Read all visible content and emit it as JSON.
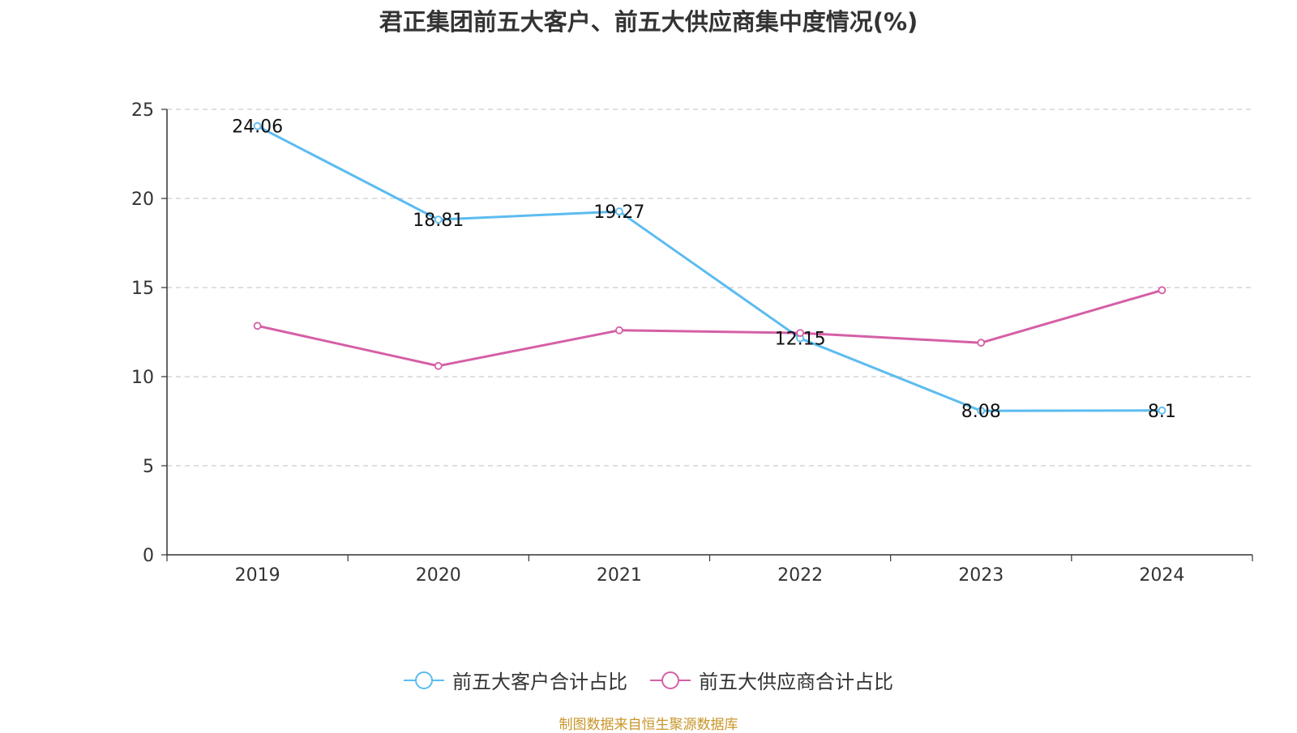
{
  "title": "君正集团前五大客户、前五大供应商集中度情况(%)",
  "source_note": "制图数据来自恒生聚源数据库",
  "colors": {
    "customers": "#5bbcf0",
    "suppliers": "#d55fa6",
    "axis": "#333333",
    "grid": "#cccccc",
    "source": "#c8962a"
  },
  "chart_data": {
    "type": "line",
    "title": "君正集团前五大客户、前五大供应商集中度情况(%)",
    "categories": [
      "2019",
      "2020",
      "2021",
      "2022",
      "2023",
      "2024"
    ],
    "ylim": [
      0,
      25
    ],
    "yticks": [
      0,
      5,
      10,
      15,
      20,
      25
    ],
    "grid": true,
    "legend_position": "bottom",
    "series": [
      {
        "name": "前五大客户合计占比",
        "values": [
          24.06,
          18.81,
          19.27,
          12.15,
          8.08,
          8.1
        ],
        "labels": [
          "24.06",
          "18.81",
          "19.27",
          "12.15",
          "8.08",
          "8.1"
        ],
        "show_labels": true
      },
      {
        "name": "前五大供应商合计占比",
        "values": [
          12.85,
          10.6,
          12.6,
          12.45,
          11.9,
          14.85
        ],
        "show_labels": false
      }
    ]
  },
  "legend": [
    {
      "label": "前五大客户合计占比"
    },
    {
      "label": "前五大供应商合计占比"
    }
  ]
}
